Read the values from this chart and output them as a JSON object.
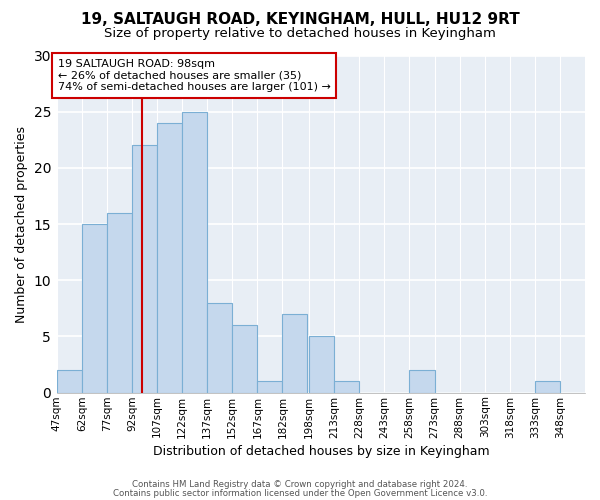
{
  "title": "19, SALTAUGH ROAD, KEYINGHAM, HULL, HU12 9RT",
  "subtitle": "Size of property relative to detached houses in Keyingham",
  "xlabel": "Distribution of detached houses by size in Keyingham",
  "ylabel": "Number of detached properties",
  "bin_labels": [
    "47sqm",
    "62sqm",
    "77sqm",
    "92sqm",
    "107sqm",
    "122sqm",
    "137sqm",
    "152sqm",
    "167sqm",
    "182sqm",
    "198sqm",
    "213sqm",
    "228sqm",
    "243sqm",
    "258sqm",
    "273sqm",
    "288sqm",
    "303sqm",
    "318sqm",
    "333sqm",
    "348sqm"
  ],
  "bar_values": [
    2,
    15,
    16,
    22,
    24,
    25,
    8,
    6,
    1,
    7,
    5,
    1,
    0,
    0,
    2,
    0,
    0,
    0,
    0,
    1,
    0
  ],
  "bar_color": "#c5d8ed",
  "bar_edgecolor": "#7bafd4",
  "vline_x": 98,
  "bin_edges": [
    47,
    62,
    77,
    92,
    107,
    122,
    137,
    152,
    167,
    182,
    198,
    213,
    228,
    243,
    258,
    273,
    288,
    303,
    318,
    333,
    348,
    363
  ],
  "ylim": [
    0,
    30
  ],
  "yticks": [
    0,
    5,
    10,
    15,
    20,
    25,
    30
  ],
  "annotation_title": "19 SALTAUGH ROAD: 98sqm",
  "annotation_line1": "← 26% of detached houses are smaller (35)",
  "annotation_line2": "74% of semi-detached houses are larger (101) →",
  "annotation_box_edgecolor": "#cc0000",
  "vline_color": "#cc0000",
  "footer1": "Contains HM Land Registry data © Crown copyright and database right 2024.",
  "footer2": "Contains public sector information licensed under the Open Government Licence v3.0.",
  "background_color": "#ffffff",
  "plot_bg_color": "#e8eef5",
  "grid_color": "#ffffff",
  "title_fontsize": 11,
  "subtitle_fontsize": 9.5
}
